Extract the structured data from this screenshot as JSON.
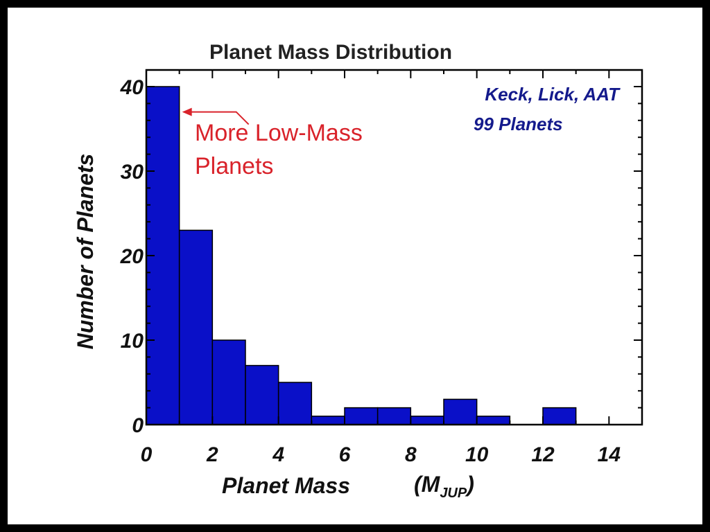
{
  "chart_data": {
    "type": "bar",
    "title": "Planet Mass Distribution",
    "xlabel": "Planet  Mass",
    "xlabel_unit_main": "(M",
    "xlabel_unit_sub": "JUP",
    "xlabel_unit_close": ")",
    "ylabel": "Number of Planets",
    "xlim": [
      0,
      15
    ],
    "ylim": [
      0,
      40
    ],
    "xticks": [
      0,
      2,
      4,
      6,
      8,
      10,
      12,
      14
    ],
    "yticks": [
      0,
      10,
      20,
      30,
      40
    ],
    "bin_width": 1,
    "bins": [
      {
        "x0": 0,
        "x1": 1,
        "value": 40
      },
      {
        "x0": 1,
        "x1": 2,
        "value": 23
      },
      {
        "x0": 2,
        "x1": 3,
        "value": 10
      },
      {
        "x0": 3,
        "x1": 4,
        "value": 7
      },
      {
        "x0": 4,
        "x1": 5,
        "value": 5
      },
      {
        "x0": 5,
        "x1": 6,
        "value": 1
      },
      {
        "x0": 6,
        "x1": 7,
        "value": 2
      },
      {
        "x0": 7,
        "x1": 8,
        "value": 2
      },
      {
        "x0": 8,
        "x1": 9,
        "value": 1
      },
      {
        "x0": 9,
        "x1": 10,
        "value": 3
      },
      {
        "x0": 10,
        "x1": 11,
        "value": 1
      },
      {
        "x0": 11,
        "x1": 12,
        "value": 0
      },
      {
        "x0": 12,
        "x1": 13,
        "value": 2
      },
      {
        "x0": 13,
        "x1": 14,
        "value": 0
      },
      {
        "x0": 14,
        "x1": 15,
        "value": 0
      }
    ],
    "legend": {
      "line1": "Keck, Lick, AAT",
      "line2": "99 Planets",
      "placement": "top-right"
    },
    "annotation": {
      "line1": "More Low-Mass",
      "line2": "Planets",
      "points_to": {
        "x": 1,
        "y": 37
      }
    },
    "grid": false
  },
  "colors": {
    "bar_fill": "#0a10c8",
    "bar_edge": "#000000",
    "legend_text": "#141a8c",
    "annotation": "#d9222a",
    "background": "#ffffff",
    "frame": "#000000"
  }
}
